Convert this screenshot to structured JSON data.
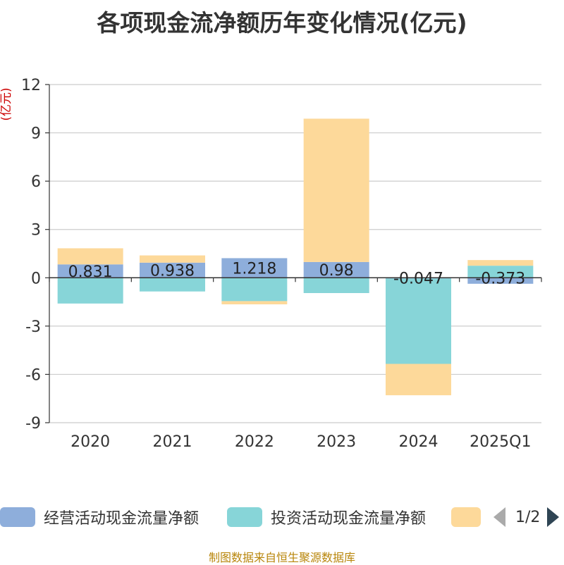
{
  "chart_data": {
    "type": "bar",
    "stacked": true,
    "title": "各项现金流净额历年变化情况(亿元)",
    "ylabel": "(亿元)",
    "xlabel": "",
    "categories": [
      "2020",
      "2021",
      "2022",
      "2023",
      "2024",
      "2025Q1"
    ],
    "ylim": [
      -9,
      12
    ],
    "yticks": [
      -9,
      -6,
      -3,
      0,
      3,
      6,
      9,
      12
    ],
    "grid": true,
    "series": [
      {
        "name": "经营活动现金流量净额",
        "color": "#8eaedb",
        "values": [
          0.831,
          0.938,
          1.218,
          0.98,
          -0.047,
          -0.373
        ],
        "labels": [
          "0.831",
          "0.938",
          "1.218",
          "0.98",
          "-0.047",
          "-0.373"
        ]
      },
      {
        "name": "投资活动现金流量净额",
        "color": "#87d5d8",
        "values": [
          -1.6,
          -0.85,
          -1.45,
          -0.95,
          -5.3,
          0.75
        ]
      },
      {
        "name": "",
        "color": "#fdd99a",
        "values": [
          1.0,
          0.45,
          -0.2,
          8.9,
          -1.95,
          0.35
        ]
      }
    ]
  },
  "legend": {
    "items": [
      "经营活动现金流量净额",
      "投资活动现金流量净额",
      ""
    ],
    "page": "1/2"
  },
  "source": "制图数据来自恒生聚源数据库"
}
